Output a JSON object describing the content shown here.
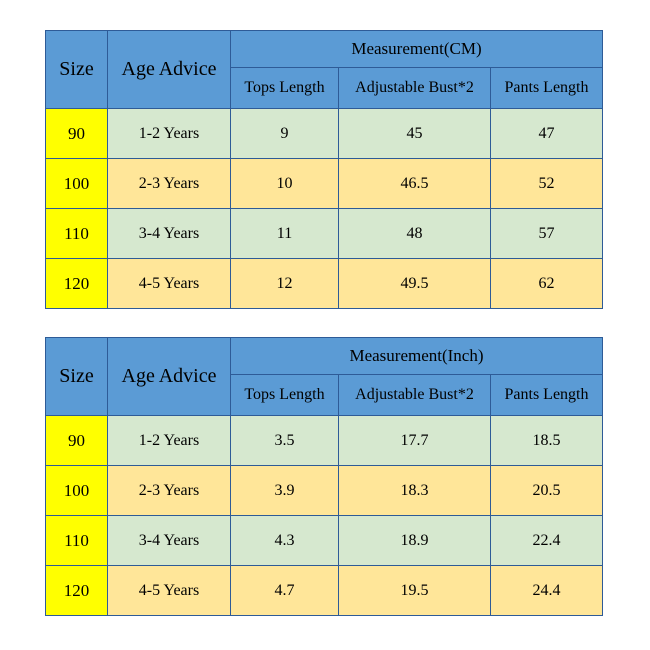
{
  "colors": {
    "header_blue": "#5b9bd5",
    "size_cell_yellow": "#ffff00",
    "row_green": "#d6e8cf",
    "row_amber": "#ffe699",
    "border_blue": "#2e5b97"
  },
  "chart_data": [
    {
      "type": "table",
      "title": "Measurement(CM)",
      "header": {
        "size": "Size",
        "age": "Age Advice",
        "measurement": "Measurement(CM)",
        "sub": [
          "Tops Length",
          "Adjustable Bust*2",
          "Pants Length"
        ]
      },
      "rows": [
        {
          "size": "90",
          "age": "1-2 Years",
          "tops": "9",
          "bust": "45",
          "pants": "47"
        },
        {
          "size": "100",
          "age": "2-3 Years",
          "tops": "10",
          "bust": "46.5",
          "pants": "52"
        },
        {
          "size": "110",
          "age": "3-4 Years",
          "tops": "11",
          "bust": "48",
          "pants": "57"
        },
        {
          "size": "120",
          "age": "4-5 Years",
          "tops": "12",
          "bust": "49.5",
          "pants": "62"
        }
      ]
    },
    {
      "type": "table",
      "title": "Measurement(Inch)",
      "header": {
        "size": "Size",
        "age": "Age Advice",
        "measurement": "Measurement(Inch)",
        "sub": [
          "Tops Length",
          "Adjustable Bust*2",
          "Pants Length"
        ]
      },
      "rows": [
        {
          "size": "90",
          "age": "1-2 Years",
          "tops": "3.5",
          "bust": "17.7",
          "pants": "18.5"
        },
        {
          "size": "100",
          "age": "2-3 Years",
          "tops": "3.9",
          "bust": "18.3",
          "pants": "20.5"
        },
        {
          "size": "110",
          "age": "3-4 Years",
          "tops": "4.3",
          "bust": "18.9",
          "pants": "22.4"
        },
        {
          "size": "120",
          "age": "4-5 Years",
          "tops": "4.7",
          "bust": "19.5",
          "pants": "24.4"
        }
      ]
    }
  ]
}
